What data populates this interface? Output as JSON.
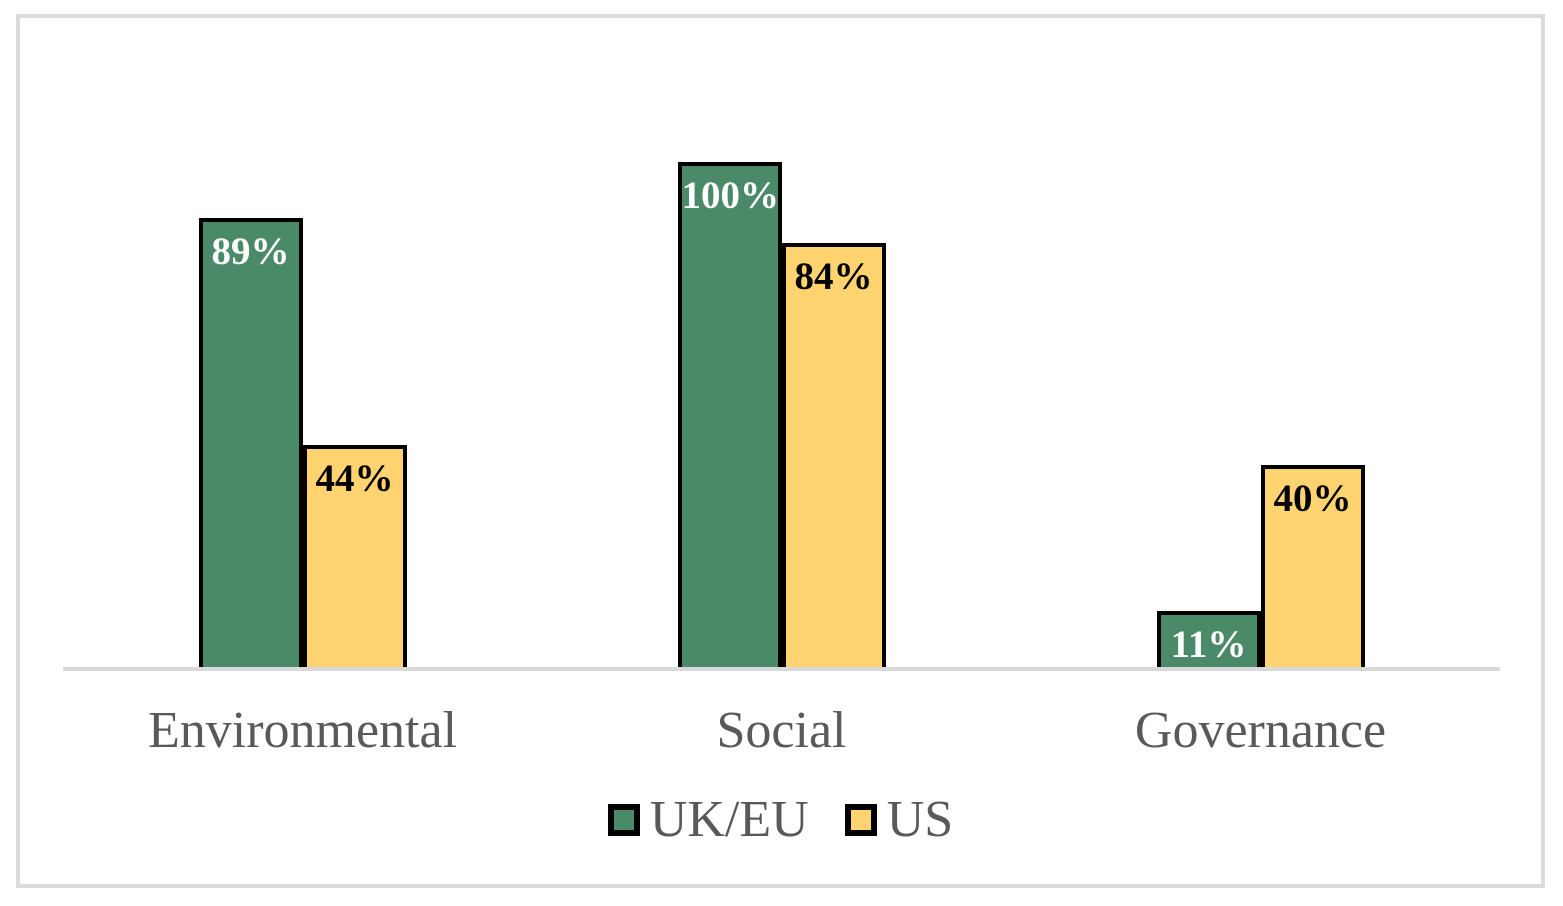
{
  "chart_data": {
    "type": "bar",
    "categories": [
      "Environmental",
      "Social",
      "Governance"
    ],
    "series": [
      {
        "name": "UK/EU",
        "color": "#4A8A68",
        "label_color": "#FFFFFF",
        "values": [
          89,
          100,
          11
        ],
        "labels": [
          "89%",
          "100%",
          "11%"
        ]
      },
      {
        "name": "US",
        "color": "#FFD370",
        "label_color": "#000000",
        "values": [
          44,
          84,
          40
        ],
        "labels": [
          "44%",
          "84%",
          "40%"
        ]
      }
    ],
    "ylim": [
      0,
      100
    ],
    "grid": false,
    "y_axis_visible": false,
    "legend_position": "bottom",
    "bar_outline_color": "#000000",
    "axis_line_color": "#D9D9D9",
    "frame_border_color": "#DBDBDB",
    "category_label_color": "#595959"
  }
}
